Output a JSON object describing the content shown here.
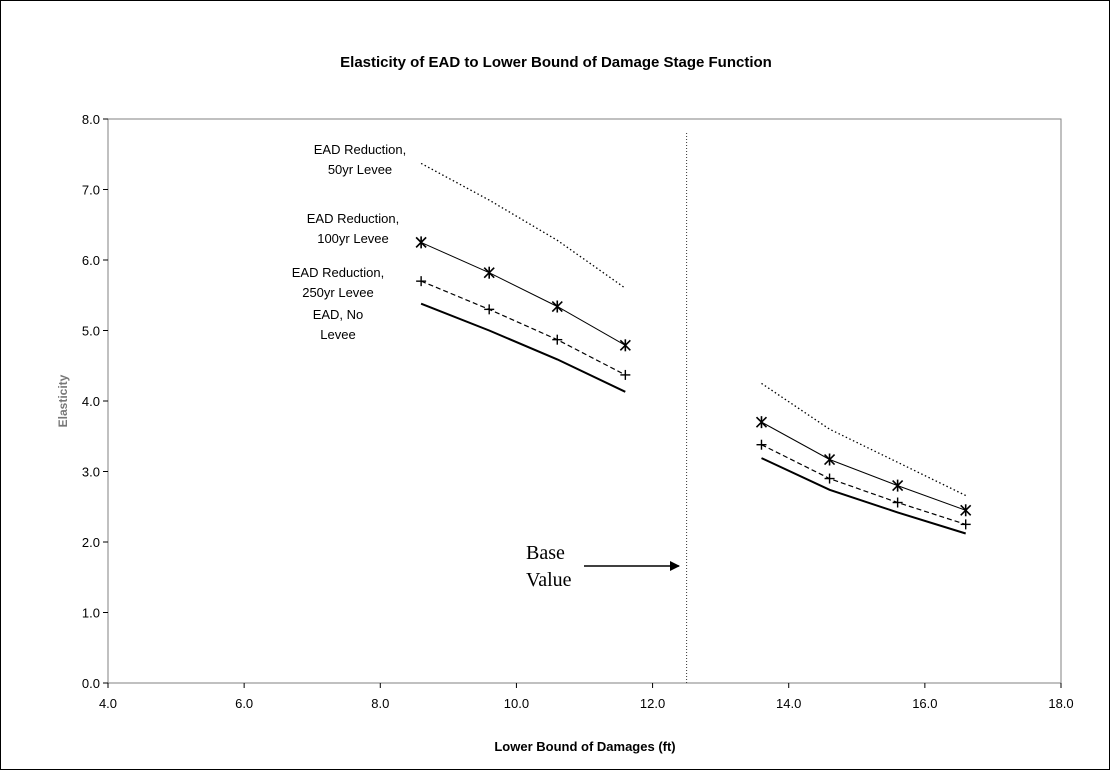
{
  "chart_data": {
    "type": "line",
    "title": "Elasticity of EAD to Lower Bound of Damage Stage Function",
    "xlabel": "Lower Bound of Damages (ft)",
    "ylabel": "Elasticity",
    "xlim": [
      4.0,
      18.0
    ],
    "ylim": [
      0.0,
      8.0
    ],
    "x_ticks": [
      "4.0",
      "6.0",
      "8.0",
      "10.0",
      "12.0",
      "14.0",
      "16.0",
      "18.0"
    ],
    "y_ticks": [
      "0.0",
      "1.0",
      "2.0",
      "3.0",
      "4.0",
      "5.0",
      "6.0",
      "7.0",
      "8.0"
    ],
    "grid": false,
    "legend": "none",
    "series": [
      {
        "name": "EAD Reduction, 50yr Levee",
        "line_style": "dotted",
        "marker": "none",
        "segments": [
          [
            [
              8.6,
              7.37
            ],
            [
              9.6,
              6.85
            ],
            [
              10.6,
              6.28
            ],
            [
              11.6,
              5.6
            ]
          ],
          [
            [
              13.6,
              4.25
            ],
            [
              14.6,
              3.6
            ],
            [
              15.6,
              3.13
            ],
            [
              16.6,
              2.66
            ]
          ]
        ]
      },
      {
        "name": "EAD Reduction, 100yr Levee",
        "line_style": "solid-thin",
        "marker": "asterisk",
        "segments": [
          [
            [
              8.6,
              6.25
            ],
            [
              9.6,
              5.82
            ],
            [
              10.6,
              5.34
            ],
            [
              11.6,
              4.79
            ]
          ],
          [
            [
              13.6,
              3.7
            ],
            [
              14.6,
              3.17
            ],
            [
              15.6,
              2.8
            ],
            [
              16.6,
              2.45
            ]
          ]
        ]
      },
      {
        "name": "EAD Reduction, 250yr Levee",
        "line_style": "dashed",
        "marker": "plus",
        "segments": [
          [
            [
              8.6,
              5.7
            ],
            [
              9.6,
              5.3
            ],
            [
              10.6,
              4.87
            ],
            [
              11.6,
              4.37
            ]
          ],
          [
            [
              13.6,
              3.38
            ],
            [
              14.6,
              2.9
            ],
            [
              15.6,
              2.56
            ],
            [
              16.6,
              2.25
            ]
          ]
        ]
      },
      {
        "name": "EAD, No Levee",
        "line_style": "solid-thick",
        "marker": "none",
        "segments": [
          [
            [
              8.6,
              5.38
            ],
            [
              9.6,
              5.0
            ],
            [
              10.6,
              4.59
            ],
            [
              11.6,
              4.13
            ]
          ],
          [
            [
              13.6,
              3.19
            ],
            [
              14.6,
              2.74
            ],
            [
              15.6,
              2.42
            ],
            [
              16.6,
              2.12
            ]
          ]
        ]
      }
    ],
    "reference_line": {
      "x": 12.5,
      "style": "dotted",
      "label": "Base Value"
    },
    "annotations": [
      {
        "series_index": 0,
        "lines": [
          "EAD Reduction,",
          "50yr Levee"
        ]
      },
      {
        "series_index": 1,
        "lines": [
          "EAD Reduction,",
          "100yr Levee"
        ]
      },
      {
        "series_index": 2,
        "lines": [
          "EAD Reduction,",
          "250yr Levee"
        ]
      },
      {
        "series_index": 3,
        "lines": [
          "EAD, No",
          "Levee"
        ]
      }
    ],
    "base_label_lines": [
      "Base",
      "Value"
    ]
  }
}
